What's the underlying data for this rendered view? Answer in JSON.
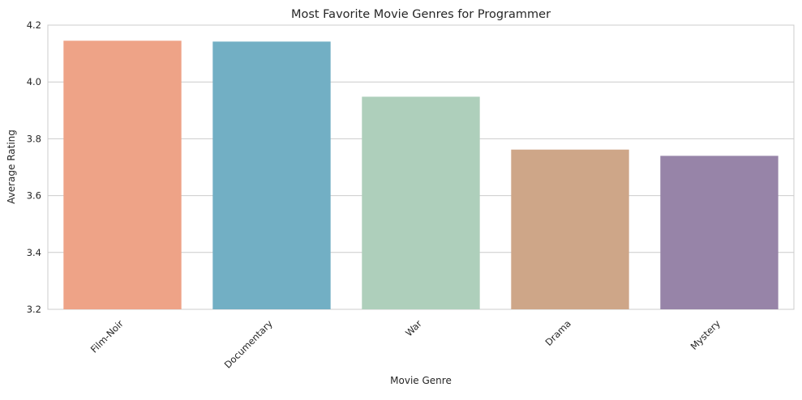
{
  "chart_data": {
    "type": "bar",
    "title": "Most Favorite Movie Genres for Programmer",
    "xlabel": "Movie Genre",
    "ylabel": "Average Rating",
    "categories": [
      "Film-Noir",
      "Documentary",
      "War",
      "Drama",
      "Mystery"
    ],
    "values": [
      4.145,
      4.142,
      3.948,
      3.762,
      3.74
    ],
    "colors": [
      "#EEA387",
      "#72AFC4",
      "#AECFBB",
      "#CEA688",
      "#9784A8"
    ],
    "ylim": [
      3.2,
      4.2
    ],
    "yticks": [
      3.2,
      3.4,
      3.6,
      3.8,
      4.0,
      4.2
    ],
    "ytick_labels": [
      "3.2",
      "3.4",
      "3.6",
      "3.8",
      "4.0",
      "4.2"
    ],
    "grid": true,
    "legend": "none",
    "xtick_rotation": 45
  }
}
